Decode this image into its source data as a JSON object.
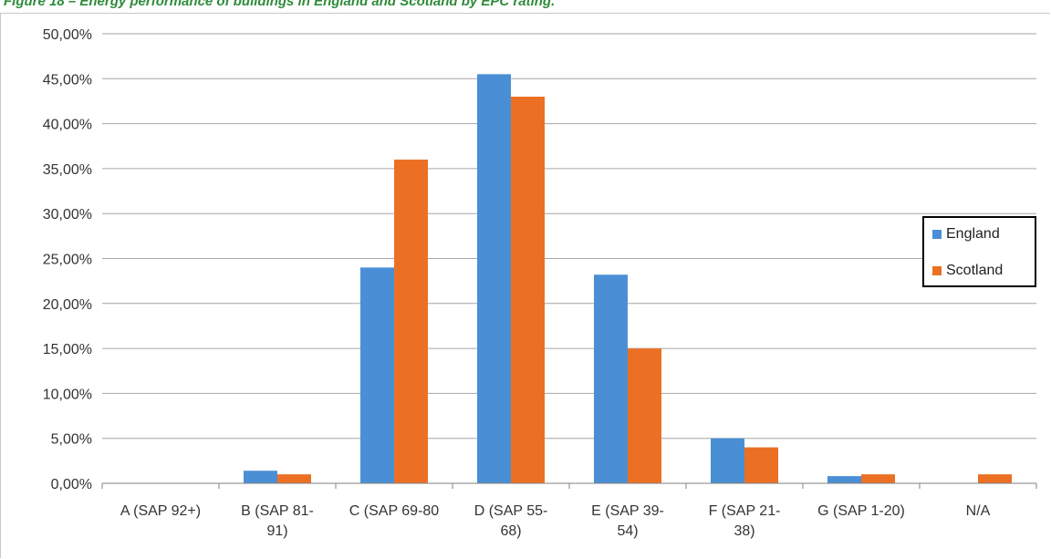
{
  "caption": "Figure 18 – Energy performance of buildings in England and Scotland by EPC rating.",
  "colors": {
    "caption": "#2e8b3a",
    "england": "#4a8fd5",
    "scotland": "#ec7023",
    "grid": "#a6a6a6",
    "axis": "#808080"
  },
  "chart_data": {
    "type": "bar",
    "title": "",
    "xlabel": "",
    "ylabel": "",
    "categories": [
      [
        "A (SAP 92+)"
      ],
      [
        "B (SAP 81-",
        "91)"
      ],
      [
        "C (SAP 69-80"
      ],
      [
        "D (SAP 55-",
        "68)"
      ],
      [
        "E (SAP 39-",
        "54)"
      ],
      [
        "F (SAP 21-",
        "38)"
      ],
      [
        "G (SAP 1-20)"
      ],
      [
        "N/A"
      ]
    ],
    "series": [
      {
        "name": "England",
        "values": [
          0.0,
          1.4,
          24.0,
          45.5,
          23.2,
          5.0,
          0.8,
          0.0
        ]
      },
      {
        "name": "Scotland",
        "values": [
          0.0,
          1.0,
          36.0,
          43.0,
          15.0,
          4.0,
          1.0,
          1.0
        ]
      }
    ],
    "ylim": [
      0,
      50
    ],
    "yticks": [
      "0,00%",
      "5,00%",
      "10,00%",
      "15,00%",
      "20,00%",
      "25,00%",
      "30,00%",
      "35,00%",
      "40,00%",
      "45,00%",
      "50,00%"
    ],
    "grid": true,
    "legend_position": "right"
  }
}
